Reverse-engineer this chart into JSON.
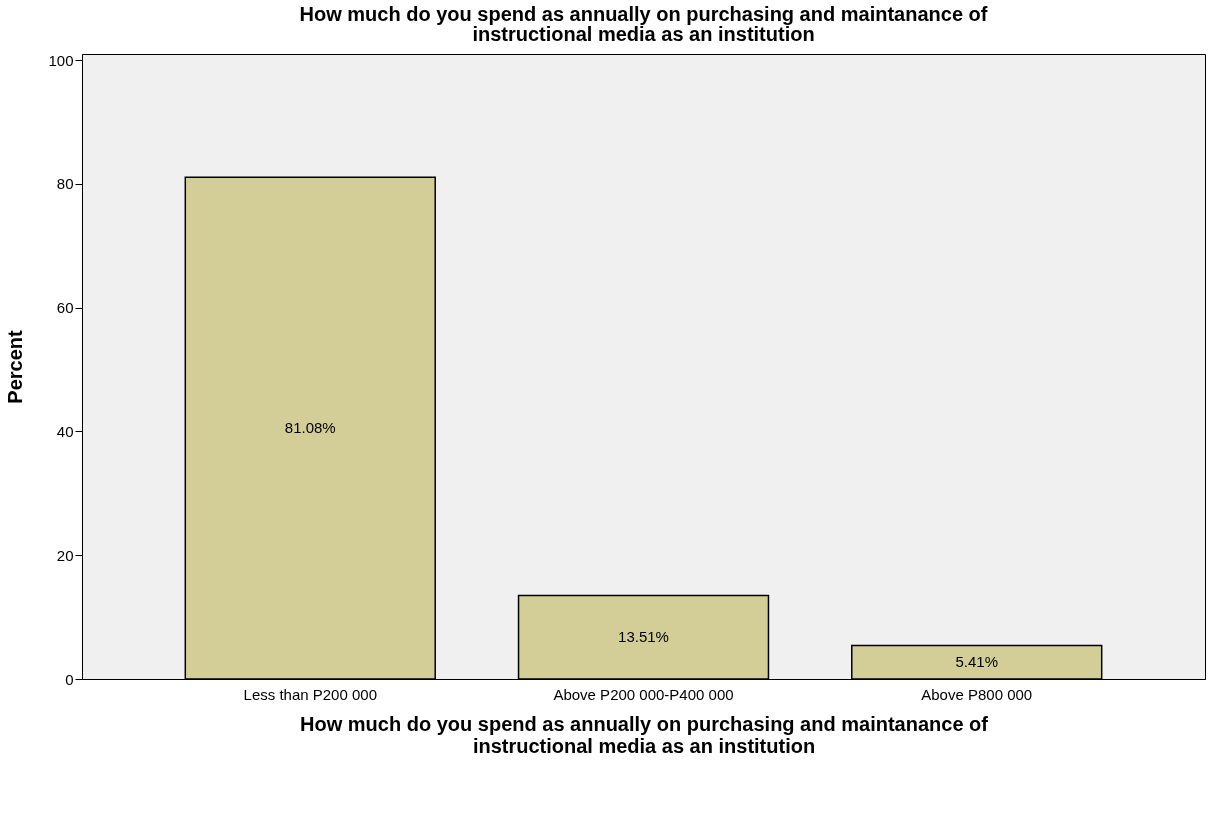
{
  "chart_data": {
    "type": "bar",
    "title": "How much do you spend as annually on purchasing and maintanance of instructional media as an institution",
    "xlabel": "How much do you spend as annually on purchasing and maintanance of instructional media as an institution",
    "ylabel": "Percent",
    "categories": [
      "Less than P200 000",
      "Above P200 000-P400 000",
      "Above P800 000"
    ],
    "values": [
      81.08,
      13.51,
      5.41
    ],
    "value_labels": [
      "81.08%",
      "13.51%",
      "5.41%"
    ],
    "color": "#d3ce97",
    "ylim": [
      0,
      101
    ],
    "yticks": [
      0,
      20,
      40,
      60,
      80,
      100
    ],
    "grid": false
  }
}
